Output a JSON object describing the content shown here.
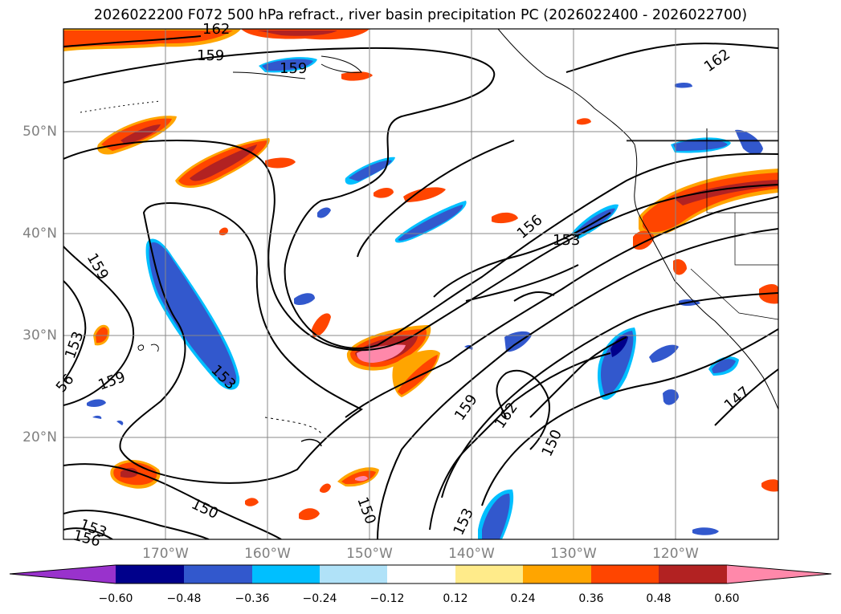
{
  "title": "2026022200 F072 500 hPa refract., river basin precipitation PC (2026022400 - 2026022700)",
  "map": {
    "lon_range": [
      -180,
      -110
    ],
    "lat_range": [
      10,
      60
    ],
    "lat_labels": [
      "50°N",
      "40°N",
      "30°N",
      "20°N"
    ],
    "lon_labels": [
      "170°W",
      "160°W",
      "150°W",
      "140°W",
      "130°W",
      "120°W"
    ],
    "contour_labels": [
      "162",
      "159",
      "159",
      "159",
      "153",
      "56",
      "159",
      "153",
      "156",
      "153",
      "162",
      "159",
      "162",
      "150",
      "147",
      "150",
      "150",
      "153",
      "153",
      "156"
    ]
  },
  "colorbar": {
    "ticks": [
      "−0.60",
      "−0.48",
      "−0.36",
      "−0.24",
      "−0.12",
      "0.12",
      "0.24",
      "0.36",
      "0.48",
      "0.60"
    ],
    "colors": [
      "#9932cc",
      "#00008b",
      "#3258cd",
      "#00bfff",
      "#b0e2f8",
      "#ffffff",
      "#ffeb8a",
      "#ffa500",
      "#ff4500",
      "#b22222",
      "#ff88aa"
    ]
  }
}
